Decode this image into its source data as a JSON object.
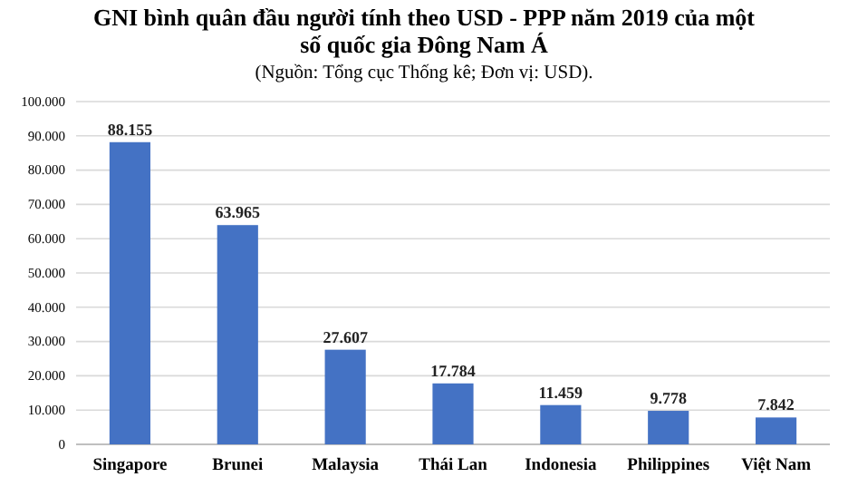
{
  "chart_data": {
    "type": "bar",
    "title": "GNI bình quân đầu người tính theo USD - PPP năm 2019 của một số quốc gia Đông Nam Á",
    "subtitle": "(Nguồn: Tổng cục Thống kê; Đơn vị: USD).",
    "categories": [
      "Singapore",
      "Brunei",
      "Malaysia",
      "Thái Lan",
      "Indonesia",
      "Philippines",
      "Việt Nam"
    ],
    "values": [
      88155,
      63965,
      27607,
      17784,
      11459,
      9778,
      7842
    ],
    "value_labels": [
      "88.155",
      "63.965",
      "27.607",
      "17.784",
      "11.459",
      "9.778",
      "7.842"
    ],
    "color": "#4472c4",
    "ylim": [
      0,
      100000
    ],
    "yticks": [
      {
        "value": 0,
        "label": "0"
      },
      {
        "value": 10000,
        "label": "10.000"
      },
      {
        "value": 20000,
        "label": "20.000"
      },
      {
        "value": 30000,
        "label": "30.000"
      },
      {
        "value": 40000,
        "label": "40.000"
      },
      {
        "value": 50000,
        "label": "50.000"
      },
      {
        "value": 60000,
        "label": "60.000"
      },
      {
        "value": 70000,
        "label": "70.000"
      },
      {
        "value": 80000,
        "label": "80.000"
      },
      {
        "value": 90000,
        "label": "90.000"
      },
      {
        "value": 100000,
        "label": "100.000"
      }
    ],
    "grid": "y"
  }
}
